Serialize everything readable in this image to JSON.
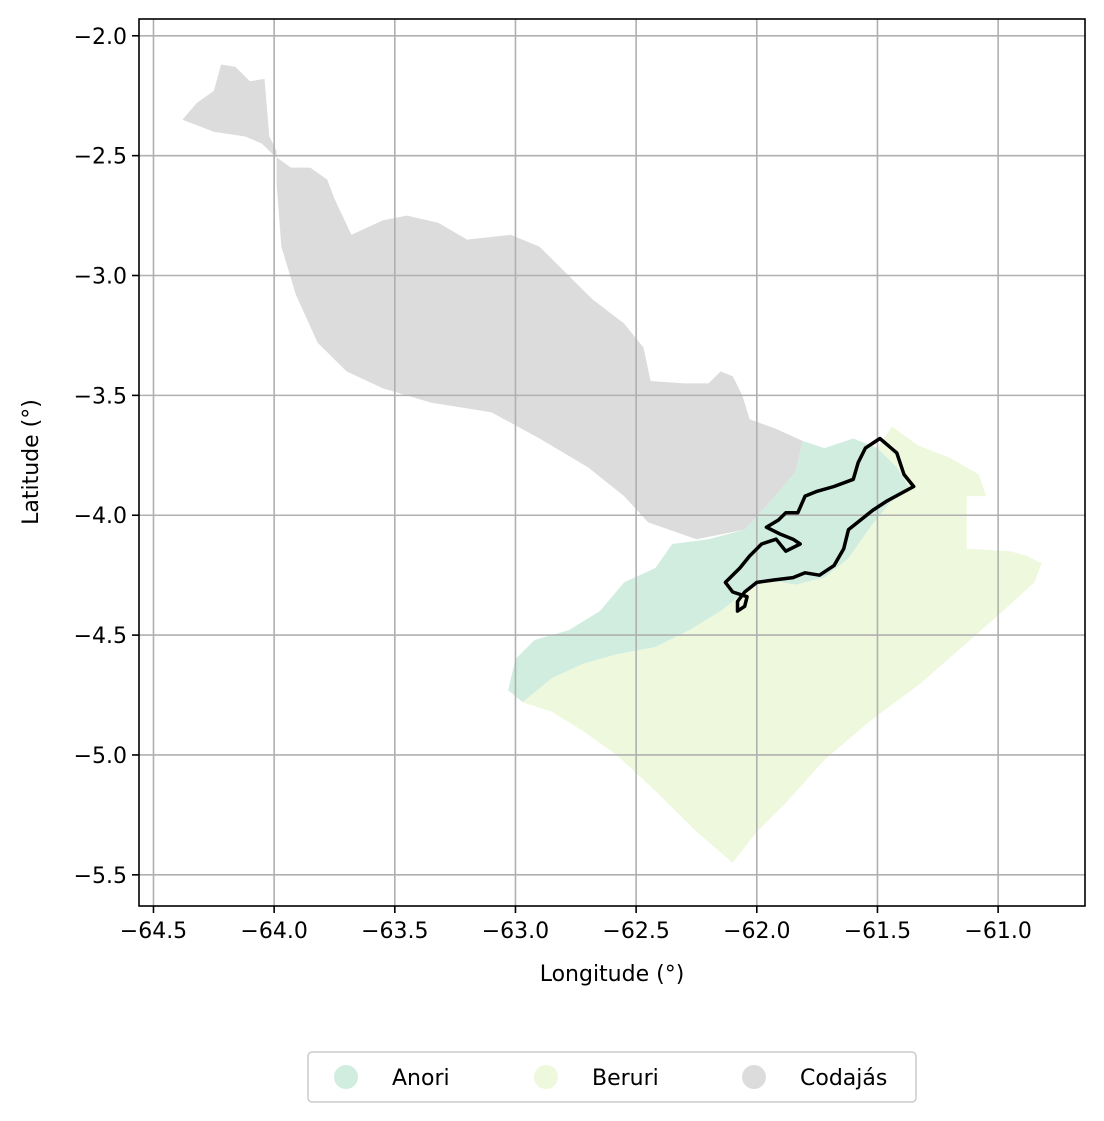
{
  "chart_data": {
    "type": "map",
    "xlabel": "Longitude (°)",
    "ylabel": "Latitude (°)",
    "xlim": [
      -64.56,
      -60.64
    ],
    "ylim": [
      -5.63,
      -1.93
    ],
    "xticks": [
      -64.5,
      -64.0,
      -63.5,
      -63.0,
      -62.5,
      -62.0,
      -61.5,
      -61.0
    ],
    "xtick_labels": [
      "−64.5",
      "−64.0",
      "−63.5",
      "−63.0",
      "−62.5",
      "−62.0",
      "−61.5",
      "−61.0"
    ],
    "yticks": [
      -2.0,
      -2.5,
      -3.0,
      -3.5,
      -4.0,
      -4.5,
      -5.0,
      -5.5
    ],
    "ytick_labels": [
      "−2.0",
      "−2.5",
      "−3.0",
      "−3.5",
      "−4.0",
      "−4.5",
      "−5.0",
      "−5.5"
    ],
    "grid": true,
    "legend_placement": "bottom-center",
    "regions": [
      {
        "name": "Anori",
        "color": "#d0ede0",
        "polygon": [
          [
            -61.81,
            -3.69
          ],
          [
            -61.72,
            -3.72
          ],
          [
            -61.6,
            -3.68
          ],
          [
            -61.5,
            -3.72
          ],
          [
            -61.42,
            -3.8
          ],
          [
            -61.37,
            -3.88
          ],
          [
            -61.45,
            -3.95
          ],
          [
            -61.53,
            -4.05
          ],
          [
            -61.62,
            -4.18
          ],
          [
            -61.72,
            -4.26
          ],
          [
            -61.84,
            -4.29
          ],
          [
            -61.95,
            -4.27
          ],
          [
            -62.05,
            -4.32
          ],
          [
            -62.15,
            -4.4
          ],
          [
            -62.28,
            -4.48
          ],
          [
            -62.42,
            -4.55
          ],
          [
            -62.58,
            -4.58
          ],
          [
            -62.72,
            -4.62
          ],
          [
            -62.85,
            -4.68
          ],
          [
            -62.97,
            -4.78
          ],
          [
            -63.03,
            -4.73
          ],
          [
            -63.0,
            -4.6
          ],
          [
            -62.92,
            -4.52
          ],
          [
            -62.78,
            -4.48
          ],
          [
            -62.65,
            -4.4
          ],
          [
            -62.55,
            -4.28
          ],
          [
            -62.42,
            -4.22
          ],
          [
            -62.35,
            -4.12
          ],
          [
            -62.2,
            -4.1
          ],
          [
            -62.05,
            -4.06
          ],
          [
            -61.95,
            -3.95
          ],
          [
            -61.84,
            -3.82
          ]
        ]
      },
      {
        "name": "Beruri",
        "color": "#eef8dc",
        "polygon": [
          [
            -61.5,
            -3.72
          ],
          [
            -61.44,
            -3.63
          ],
          [
            -61.33,
            -3.71
          ],
          [
            -61.2,
            -3.76
          ],
          [
            -61.08,
            -3.83
          ],
          [
            -61.05,
            -3.92
          ],
          [
            -61.13,
            -3.92
          ],
          [
            -61.13,
            -4.14
          ],
          [
            -60.95,
            -4.15
          ],
          [
            -60.88,
            -4.17
          ],
          [
            -60.82,
            -4.2
          ],
          [
            -60.85,
            -4.28
          ],
          [
            -60.98,
            -4.4
          ],
          [
            -61.15,
            -4.55
          ],
          [
            -61.32,
            -4.7
          ],
          [
            -61.52,
            -4.85
          ],
          [
            -61.72,
            -5.02
          ],
          [
            -61.88,
            -5.2
          ],
          [
            -62.0,
            -5.32
          ],
          [
            -62.1,
            -5.45
          ],
          [
            -62.25,
            -5.32
          ],
          [
            -62.42,
            -5.15
          ],
          [
            -62.58,
            -5.0
          ],
          [
            -62.72,
            -4.9
          ],
          [
            -62.85,
            -4.82
          ],
          [
            -62.97,
            -4.78
          ],
          [
            -62.85,
            -4.68
          ],
          [
            -62.72,
            -4.62
          ],
          [
            -62.58,
            -4.58
          ],
          [
            -62.42,
            -4.55
          ],
          [
            -62.28,
            -4.48
          ],
          [
            -62.15,
            -4.4
          ],
          [
            -62.05,
            -4.32
          ],
          [
            -61.95,
            -4.27
          ],
          [
            -61.84,
            -4.29
          ],
          [
            -61.72,
            -4.26
          ],
          [
            -61.62,
            -4.18
          ],
          [
            -61.53,
            -4.05
          ],
          [
            -61.45,
            -3.95
          ],
          [
            -61.37,
            -3.88
          ],
          [
            -61.42,
            -3.8
          ]
        ]
      },
      {
        "name": "Codajás",
        "color": "#dcdcdc",
        "polygon": [
          [
            -64.38,
            -2.35
          ],
          [
            -64.32,
            -2.28
          ],
          [
            -64.25,
            -2.23
          ],
          [
            -64.22,
            -2.12
          ],
          [
            -64.16,
            -2.13
          ],
          [
            -64.1,
            -2.19
          ],
          [
            -64.04,
            -2.18
          ],
          [
            -64.02,
            -2.42
          ],
          [
            -63.99,
            -2.48
          ],
          [
            -63.99,
            -2.62
          ],
          [
            -63.97,
            -2.88
          ],
          [
            -63.91,
            -3.08
          ],
          [
            -63.82,
            -3.28
          ],
          [
            -63.7,
            -3.4
          ],
          [
            -63.55,
            -3.47
          ],
          [
            -63.35,
            -3.53
          ],
          [
            -63.1,
            -3.57
          ],
          [
            -62.9,
            -3.68
          ],
          [
            -62.7,
            -3.8
          ],
          [
            -62.55,
            -3.92
          ],
          [
            -62.45,
            -4.03
          ],
          [
            -62.25,
            -4.1
          ],
          [
            -62.05,
            -4.06
          ],
          [
            -61.95,
            -3.95
          ],
          [
            -61.84,
            -3.82
          ],
          [
            -61.81,
            -3.69
          ],
          [
            -61.92,
            -3.64
          ],
          [
            -62.03,
            -3.6
          ],
          [
            -62.06,
            -3.5
          ],
          [
            -62.1,
            -3.42
          ],
          [
            -62.15,
            -3.4
          ],
          [
            -62.2,
            -3.45
          ],
          [
            -62.3,
            -3.45
          ],
          [
            -62.44,
            -3.44
          ],
          [
            -62.47,
            -3.3
          ],
          [
            -62.55,
            -3.2
          ],
          [
            -62.68,
            -3.1
          ],
          [
            -62.8,
            -2.98
          ],
          [
            -62.9,
            -2.88
          ],
          [
            -63.02,
            -2.83
          ],
          [
            -63.2,
            -2.85
          ],
          [
            -63.32,
            -2.78
          ],
          [
            -63.45,
            -2.75
          ],
          [
            -63.55,
            -2.77
          ],
          [
            -63.68,
            -2.83
          ],
          [
            -63.75,
            -2.68
          ],
          [
            -63.78,
            -2.6
          ],
          [
            -63.85,
            -2.55
          ],
          [
            -63.93,
            -2.55
          ],
          [
            -64.0,
            -2.5
          ],
          [
            -64.05,
            -2.45
          ],
          [
            -64.12,
            -2.42
          ],
          [
            -64.25,
            -2.4
          ]
        ]
      }
    ],
    "highlight_boundary": {
      "color": "#000000",
      "polygon": [
        [
          -61.49,
          -3.68
        ],
        [
          -61.42,
          -3.74
        ],
        [
          -61.39,
          -3.83
        ],
        [
          -61.35,
          -3.88
        ],
        [
          -61.46,
          -3.94
        ],
        [
          -61.52,
          -3.98
        ],
        [
          -61.57,
          -4.02
        ],
        [
          -61.62,
          -4.06
        ],
        [
          -61.64,
          -4.14
        ],
        [
          -61.68,
          -4.21
        ],
        [
          -61.74,
          -4.25
        ],
        [
          -61.8,
          -4.24
        ],
        [
          -61.85,
          -4.26
        ],
        [
          -61.93,
          -4.27
        ],
        [
          -62.0,
          -4.28
        ],
        [
          -62.05,
          -4.32
        ],
        [
          -62.08,
          -4.36
        ],
        [
          -62.08,
          -4.4
        ],
        [
          -62.05,
          -4.38
        ],
        [
          -62.04,
          -4.34
        ],
        [
          -62.1,
          -4.32
        ],
        [
          -62.13,
          -4.28
        ],
        [
          -62.07,
          -4.22
        ],
        [
          -62.03,
          -4.17
        ],
        [
          -61.98,
          -4.12
        ],
        [
          -61.92,
          -4.1
        ],
        [
          -61.88,
          -4.15
        ],
        [
          -61.82,
          -4.12
        ],
        [
          -61.85,
          -4.1
        ],
        [
          -61.9,
          -4.08
        ],
        [
          -61.96,
          -4.05
        ],
        [
          -61.91,
          -4.02
        ],
        [
          -61.88,
          -3.99
        ],
        [
          -61.83,
          -3.99
        ],
        [
          -61.8,
          -3.92
        ],
        [
          -61.75,
          -3.9
        ],
        [
          -61.68,
          -3.88
        ],
        [
          -61.6,
          -3.85
        ],
        [
          -61.58,
          -3.78
        ],
        [
          -61.55,
          -3.72
        ]
      ]
    },
    "legend": [
      {
        "label": "Anori",
        "color": "#d0ede0"
      },
      {
        "label": "Beruri",
        "color": "#eef8dc"
      },
      {
        "label": "Codajás",
        "color": "#dcdcdc"
      }
    ]
  }
}
